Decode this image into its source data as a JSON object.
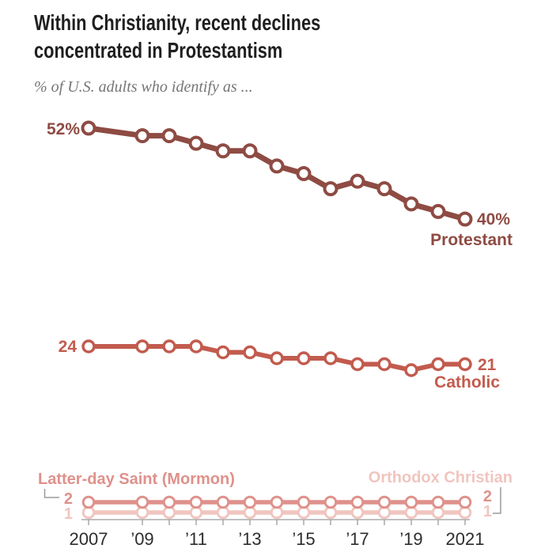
{
  "header": {
    "title_line1": "Within Christianity, recent declines",
    "title_line2": "concentrated in Protestantism",
    "subtitle": "% of U.S. adults who identify as ..."
  },
  "chart_data": {
    "type": "line",
    "title": "Within Christianity, recent declines concentrated in Protestantism",
    "subtitle": "% of U.S. adults who identify as ...",
    "x": [
      2007,
      2009,
      2010,
      2011,
      2012,
      2013,
      2014,
      2015,
      2016,
      2017,
      2018,
      2019,
      2020,
      2021
    ],
    "x_tick_labels": [
      {
        "year": 2007,
        "text": "2007"
      },
      {
        "year": 2009,
        "text": "’09"
      },
      {
        "year": 2011,
        "text": "’11"
      },
      {
        "year": 2013,
        "text": "’13"
      },
      {
        "year": 2015,
        "text": "’15"
      },
      {
        "year": 2017,
        "text": "’17"
      },
      {
        "year": 2019,
        "text": "’19"
      },
      {
        "year": 2021,
        "text": "2021"
      }
    ],
    "grid": false,
    "legend_position": "inline-labels",
    "marker_fill": "#ffffff",
    "axis_color": "#9a9a9a",
    "tick_label_color": "#2d2d2d",
    "series": [
      {
        "name": "Protestant",
        "color": "#8e4b43",
        "start_label": "52%",
        "end_label": "40%",
        "values": [
          52,
          51,
          51,
          50,
          49,
          49,
          47,
          46,
          44,
          45,
          44,
          42,
          41,
          40
        ]
      },
      {
        "name": "Catholic",
        "color": "#c25b4e",
        "start_label": "24",
        "end_label": "21",
        "values": [
          24,
          24,
          24,
          24,
          23,
          23,
          22,
          22,
          22,
          21,
          21,
          20,
          21,
          21
        ]
      },
      {
        "name": "Latter-day Saint (Mormon)",
        "color": "#df918b",
        "start_label": "2",
        "end_label": "2",
        "values": [
          2,
          2,
          2,
          2,
          2,
          2,
          2,
          2,
          2,
          2,
          2,
          2,
          2,
          2
        ]
      },
      {
        "name": "Orthodox Christian",
        "color": "#f0c5bf",
        "start_label": "1",
        "end_label": "1",
        "values": [
          1,
          1,
          1,
          1,
          1,
          1,
          1,
          1,
          1,
          1,
          1,
          1,
          1,
          1
        ]
      }
    ]
  }
}
